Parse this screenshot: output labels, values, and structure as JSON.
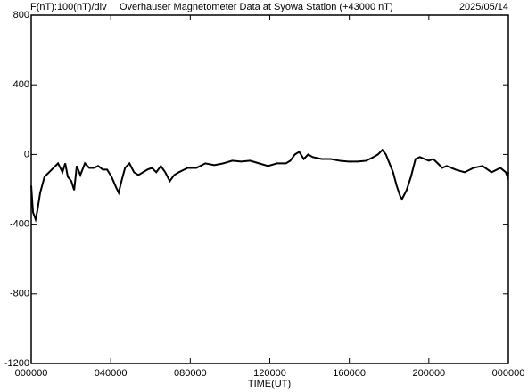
{
  "chart_data": {
    "type": "line",
    "title": "Overhauser Magnetometer Data at Syowa Station (+43000 nT)",
    "subtitle": "F(nT):100(nT)/div",
    "date": "2025/05/14",
    "x_label": "TIME(UT)",
    "xlim": [
      0,
      24
    ],
    "xticks": [
      {
        "value": 0,
        "label": "000000"
      },
      {
        "value": 4,
        "label": "040000"
      },
      {
        "value": 8,
        "label": "080000"
      },
      {
        "value": 12,
        "label": "120000"
      },
      {
        "value": 16,
        "label": "160000"
      },
      {
        "value": 20,
        "label": "200000"
      },
      {
        "value": 24,
        "label": "000000"
      }
    ],
    "ylim": [
      -1200,
      800
    ],
    "yticks": [
      -1200,
      -800,
      -400,
      0,
      400,
      800
    ],
    "series": [
      {
        "color": "#000000",
        "x": [
          0,
          0.09,
          0.22,
          0.31,
          0.45,
          0.67,
          0.9,
          1.12,
          1.35,
          1.57,
          1.71,
          1.84,
          2.02,
          2.16,
          2.29,
          2.47,
          2.7,
          2.92,
          3.15,
          3.37,
          3.6,
          3.82,
          4.04,
          4.27,
          4.4,
          4.54,
          4.72,
          4.94,
          5.17,
          5.39,
          5.62,
          5.84,
          6.07,
          6.29,
          6.52,
          6.74,
          6.97,
          7.19,
          7.42,
          7.87,
          8.31,
          8.76,
          9.21,
          9.66,
          10.11,
          10.56,
          11.01,
          11.46,
          11.91,
          12.36,
          12.81,
          13.03,
          13.26,
          13.48,
          13.71,
          13.93,
          14.16,
          14.61,
          15.06,
          15.51,
          15.96,
          16.4,
          16.85,
          17.21,
          17.44,
          17.66,
          17.84,
          18.02,
          18.2,
          18.38,
          18.56,
          18.65,
          18.88,
          19.1,
          19.33,
          19.55,
          19.78,
          20,
          20.22,
          20.45,
          20.67,
          20.9,
          21.35,
          21.8,
          22.25,
          22.7,
          23.15,
          23.6,
          23.87,
          23.96,
          24
        ],
        "values": [
          -179,
          -332,
          -373,
          -322,
          -220,
          -128,
          -102,
          -77,
          -51,
          -102,
          -51,
          -128,
          -153,
          -205,
          -66,
          -118,
          -51,
          -77,
          -77,
          -66,
          -87,
          -87,
          -128,
          -189,
          -220,
          -153,
          -77,
          -51,
          -102,
          -118,
          -102,
          -87,
          -77,
          -102,
          -66,
          -102,
          -153,
          -118,
          -102,
          -77,
          -77,
          -51,
          -61,
          -51,
          -36,
          -41,
          -36,
          -51,
          -66,
          -51,
          -51,
          -36,
          0,
          15,
          -26,
          0,
          -15,
          -26,
          -26,
          -36,
          -41,
          -41,
          -36,
          -15,
          0,
          26,
          0,
          -51,
          -102,
          -179,
          -240,
          -256,
          -205,
          -128,
          -26,
          -15,
          -26,
          -36,
          -26,
          -51,
          -77,
          -66,
          -87,
          -102,
          -77,
          -66,
          -102,
          -77,
          -102,
          -128,
          -102
        ]
      }
    ]
  }
}
